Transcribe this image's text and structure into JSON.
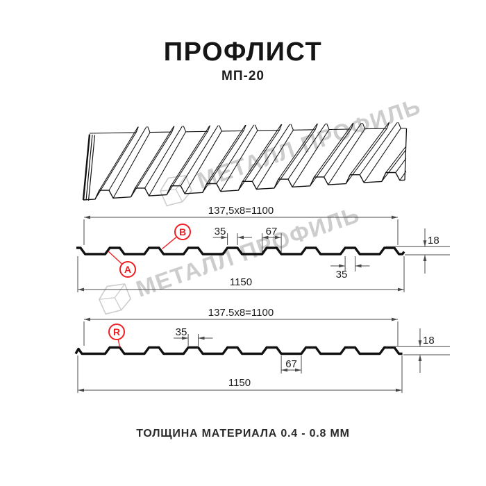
{
  "page": {
    "title": "ПРОФЛИСТ",
    "subtitle": "МП-20",
    "footer_note": "ТОЛЩИНА МАТЕРИАЛА 0.4 - 0.8 ММ"
  },
  "watermark": {
    "text": "МЕТАЛЛ ПРОФИЛЬ"
  },
  "colors": {
    "line": "#111111",
    "dim_line": "#4a4a4a",
    "text": "#1c1c1c",
    "red": "#ee1e22",
    "watermark": "#c8c8c8",
    "background": "#ffffff"
  },
  "views": {
    "front_cross_section": {
      "dims": {
        "span": "137,5x8=1100",
        "crest_width": "35",
        "crest_base": "67",
        "height": "18",
        "crest_width_bottom": "35",
        "overall": "1150"
      },
      "badges": [
        {
          "label": "B"
        },
        {
          "label": "A"
        }
      ]
    },
    "reverse_cross_section": {
      "dims": {
        "span": "137.5x8=1100",
        "crest_width": "35",
        "valley_width": "67",
        "height": "18",
        "overall": "1150"
      },
      "badges": [
        {
          "label": "R"
        }
      ]
    }
  },
  "spec": {
    "pitch_mm": 137.5,
    "pitch_count": 8,
    "working_width_mm": 1100,
    "overall_width_mm": 1150,
    "crest_top_mm": 35,
    "crest_base_mm": 67,
    "profile_height_mm": 18,
    "thickness_min_mm": 0.4,
    "thickness_max_mm": 0.8
  }
}
